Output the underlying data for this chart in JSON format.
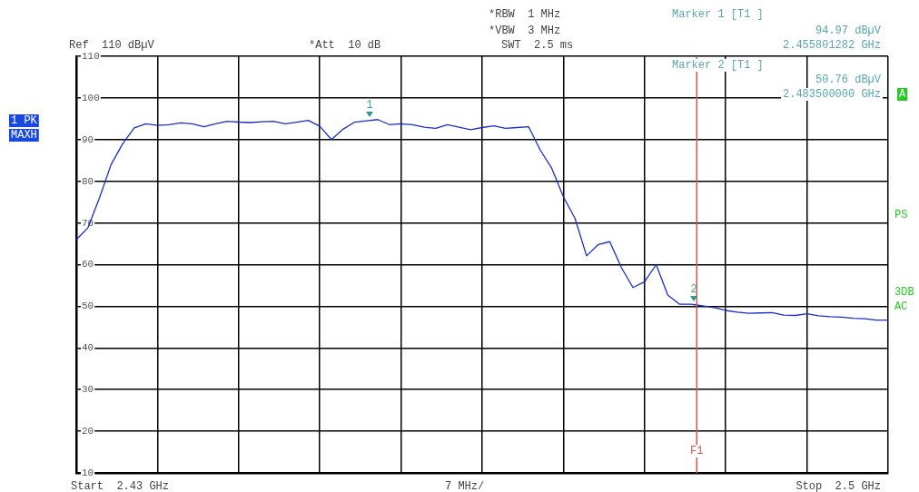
{
  "chart_data": {
    "type": "line",
    "categories": [
      null,
      null,
      null,
      null,
      null,
      null,
      null,
      null,
      null,
      null,
      null,
      null,
      null,
      null,
      null,
      null,
      null,
      null,
      null,
      null,
      null,
      null,
      null,
      null,
      null,
      null,
      null,
      null,
      null,
      null,
      null,
      null,
      null,
      null,
      null,
      null,
      null,
      null,
      null,
      null,
      null,
      null,
      null,
      null,
      null,
      null,
      null,
      null,
      null,
      null,
      null,
      null,
      null,
      null,
      null,
      null,
      null,
      null,
      null,
      null,
      null,
      null,
      null,
      null,
      null,
      null,
      null,
      null,
      null,
      null,
      null
    ],
    "series": [
      {
        "color": "#1a2ec8",
        "values": [
          66.0,
          68.8,
          76.0,
          84.0,
          89.0,
          92.8,
          93.8,
          93.4,
          93.6,
          94.0,
          93.8,
          93.1,
          93.8,
          94.4,
          94.2,
          94.1,
          94.3,
          94.4,
          93.8,
          94.2,
          94.6,
          93.2,
          90.0,
          92.5,
          94.2,
          94.5,
          94.8,
          93.6,
          93.8,
          93.6,
          93.0,
          92.7,
          93.6,
          93.0,
          92.4,
          92.9,
          93.3,
          92.7,
          92.9,
          93.1,
          87.5,
          83.1,
          76.3,
          71.1,
          62.1,
          64.8,
          65.5,
          59.3,
          54.5,
          55.9,
          60.0,
          52.7,
          50.5,
          50.5,
          50.1,
          49.7,
          49.0,
          48.6,
          48.3,
          48.4,
          48.5,
          47.9,
          47.8,
          48.2,
          47.7,
          47.5,
          47.4,
          47.1,
          47.0,
          46.7,
          46.7
        ]
      }
    ],
    "ylim": [
      10,
      110
    ],
    "yticks": [
      10,
      20,
      30,
      40,
      50,
      60,
      70,
      80,
      90,
      100,
      110
    ],
    "tick_labels": "y",
    "grid": true,
    "legend": false,
    "marker": "none",
    "line_style": "solid",
    "ref_lines": [
      {
        "axis": "x",
        "label": "F1",
        "color": "#d9534f"
      }
    ],
    "annotations": [
      "Ref  110 dBµV",
      "*Att  10 dB",
      "*RBW  1 MHz",
      "*VBW  3 MHz",
      "SWT  2.5 ms",
      "Marker 1 [T1 ]",
      "94.97 dBµV",
      "2.455801282 GHz",
      "Marker 2 [T1 ]",
      "50.76 dBµV",
      "2.483500000 GHz",
      "1 PK",
      "MAXH",
      "A",
      "PS",
      "3DB",
      "AC",
      "Start  2.43 GHz",
      "7 MHz/",
      "Stop  2.5 GHz",
      "1",
      "2"
    ]
  }
}
